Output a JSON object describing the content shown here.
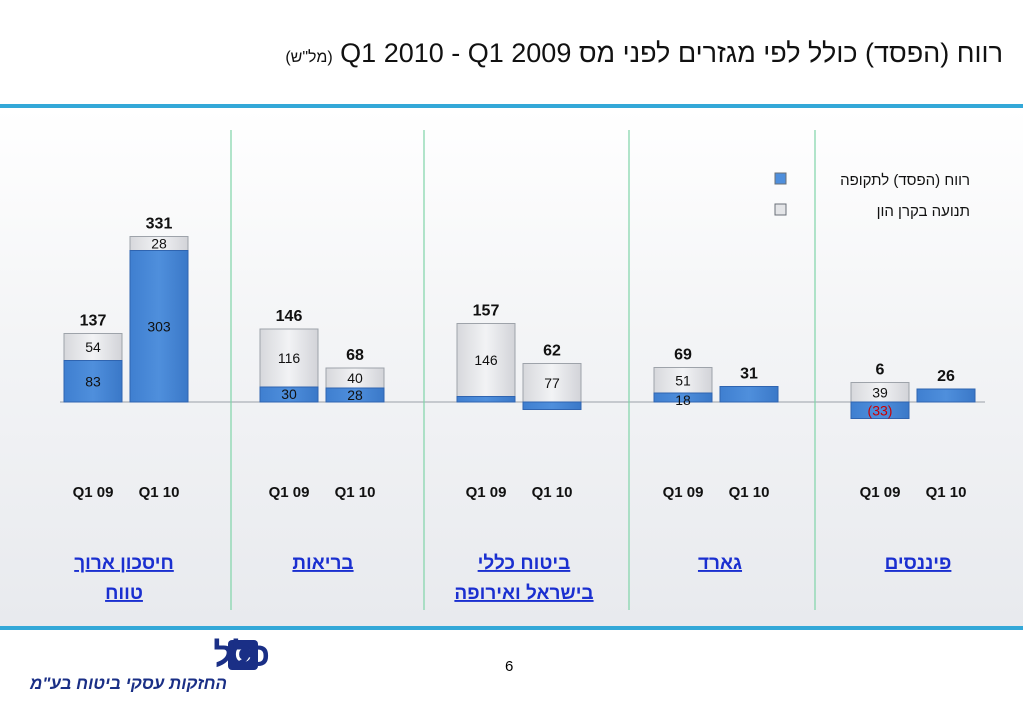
{
  "title": {
    "main": "רווח (הפסד) כולל לפי מגזרים לפני מס Q1 2010 - Q1 2009",
    "unit": "(מל\"ש)"
  },
  "colors": {
    "profit": "#4f8fdc",
    "capital_fund": "#e4e5e8",
    "negative_label": "#cc0000",
    "segment_link": "#1a2fd0",
    "divider": "#7fd4a8"
  },
  "chart_data": {
    "type": "bar",
    "stacked": true,
    "legend": {
      "placement": "top-right",
      "items": [
        {
          "key": "profit",
          "label": "רווח (הפסד) לתקופה"
        },
        {
          "key": "capital_fund",
          "label": "תנועה בקרן הון"
        }
      ]
    },
    "segments": [
      {
        "name": "חיסכון ארוך טווח",
        "name_lines": [
          "חיסכון ארוך",
          "טווח"
        ],
        "bars": [
          {
            "period": "Q1 09",
            "profit": 83,
            "capital_fund": 54,
            "total": 137,
            "profit_label": "83",
            "capital_label": "54"
          },
          {
            "period": "Q1 10",
            "profit": 303,
            "capital_fund": 28,
            "total": 331,
            "profit_label": "303",
            "capital_label": "28"
          }
        ]
      },
      {
        "name": "בריאות",
        "name_lines": [
          "בריאות"
        ],
        "bars": [
          {
            "period": "Q1 09",
            "profit": 30,
            "capital_fund": 116,
            "total": 146,
            "profit_label": "30",
            "capital_label": "116"
          },
          {
            "period": "Q1 10",
            "profit": 28,
            "capital_fund": 40,
            "total": 68,
            "profit_label": "28",
            "capital_label": "40"
          }
        ]
      },
      {
        "name": "ביטוח כללי בישראל ואירופה",
        "name_lines": [
          "ביטוח כללי",
          "בישראל ואירופה"
        ],
        "bars": [
          {
            "period": "Q1 09",
            "profit": 11,
            "capital_fund": 146,
            "total": 157,
            "profit_label": "",
            "capital_label": "146"
          },
          {
            "period": "Q1 10",
            "profit": -15,
            "capital_fund": 77,
            "total": 62,
            "profit_label": "",
            "capital_label": "77"
          }
        ]
      },
      {
        "name": "גארד",
        "name_lines": [
          "גארד"
        ],
        "bars": [
          {
            "period": "Q1 09",
            "profit": 18,
            "capital_fund": 51,
            "total": 69,
            "profit_label": "18",
            "capital_label": "51"
          },
          {
            "period": "Q1 10",
            "profit": 31,
            "capital_fund": 0,
            "total": 31,
            "profit_label": "",
            "capital_label": ""
          }
        ]
      },
      {
        "name": "פיננסים",
        "name_lines": [
          "פיננסים"
        ],
        "bars": [
          {
            "period": "Q1 09",
            "profit": -33,
            "capital_fund": 39,
            "total": 6,
            "profit_label": "(33)",
            "capital_label": "39"
          },
          {
            "period": "Q1 10",
            "profit": 26,
            "capital_fund": 0,
            "total": 26,
            "profit_label": "",
            "capital_label": ""
          }
        ]
      }
    ]
  },
  "footer": {
    "logo_word": "כלל",
    "logo_mark": "C",
    "logo_sub": "החזקות עסקי ביטוח בע\"מ",
    "page_number": "6"
  }
}
